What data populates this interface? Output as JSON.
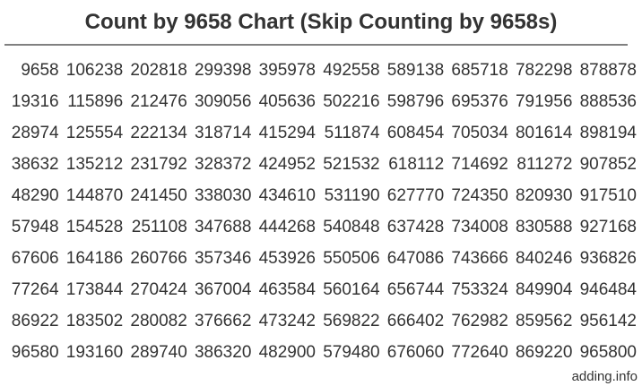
{
  "title": "Count by 9658 Chart (Skip Counting by 9658s)",
  "footer": {
    "site_label": "adding.info"
  },
  "colors": {
    "text": "#333333",
    "divider": "#808080",
    "background": "#ffffff"
  },
  "chart_data": {
    "type": "table",
    "title": "Count by 9658 Chart (Skip Counting by 9658s)",
    "step": 9658,
    "range": [
      9658,
      965800
    ],
    "order": "column-major multiples of 9658, n = 1 to 100",
    "rows": [
      [
        9658,
        106238,
        202818,
        299398,
        395978,
        492558,
        589138,
        685718,
        782298,
        878878
      ],
      [
        19316,
        115896,
        212476,
        309056,
        405636,
        502216,
        598796,
        695376,
        791956,
        888536
      ],
      [
        28974,
        125554,
        222134,
        318714,
        415294,
        511874,
        608454,
        705034,
        801614,
        898194
      ],
      [
        38632,
        135212,
        231792,
        328372,
        424952,
        521532,
        618112,
        714692,
        811272,
        907852
      ],
      [
        48290,
        144870,
        241450,
        338030,
        434610,
        531190,
        627770,
        724350,
        820930,
        917510
      ],
      [
        57948,
        154528,
        251108,
        347688,
        444268,
        540848,
        637428,
        734008,
        830588,
        927168
      ],
      [
        67606,
        164186,
        260766,
        357346,
        453926,
        550506,
        647086,
        743666,
        840246,
        936826
      ],
      [
        77264,
        173844,
        270424,
        367004,
        463584,
        560164,
        656744,
        753324,
        849904,
        946484
      ],
      [
        86922,
        183502,
        280082,
        376662,
        473242,
        569822,
        666402,
        762982,
        859562,
        956142
      ],
      [
        96580,
        193160,
        289740,
        386320,
        482900,
        579480,
        676060,
        772640,
        869220,
        965800
      ]
    ]
  }
}
